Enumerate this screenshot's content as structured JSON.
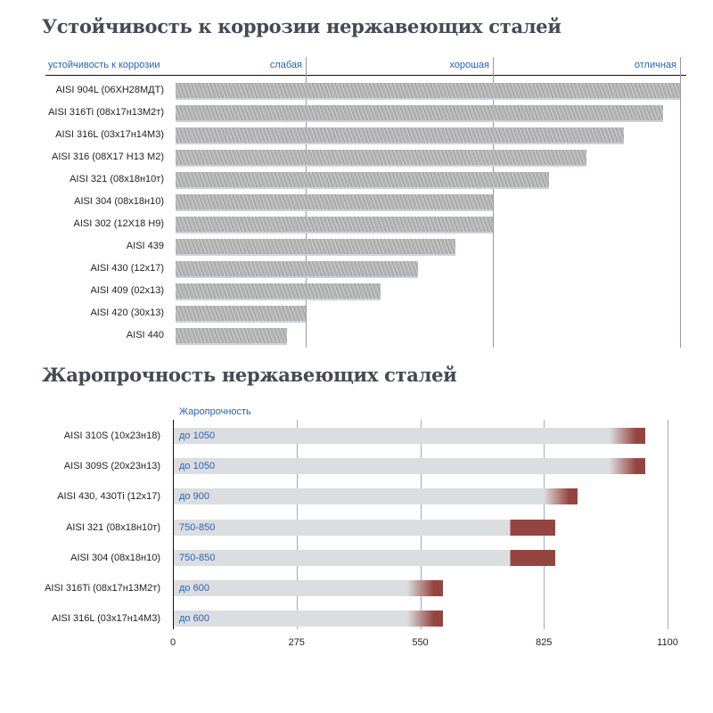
{
  "chart_data": [
    {
      "type": "bar",
      "title": "Устойчивость к коррозии нержавеющих сталей",
      "xlabel": "устойчивость к коррозии",
      "scale_labels": [
        "слабая",
        "хорошая",
        "отличная"
      ],
      "scale_values": [
        25.8,
        62.9,
        100
      ],
      "xlim": [
        0,
        100
      ],
      "categories": [
        "AISI 904L (06ХН28МДТ)",
        "AISI 316Ti (08х17н13М2т)",
        "AISI 316L (03х17н14М3)",
        "AISI 316 (08Х17 Н13 М2)",
        "AISI 321 (08х18н10т)",
        "AISI 304 (08х18н10)",
        "AISI 302 (12Х18 Н9)",
        "AISI 439",
        "AISI 430 (12х17)",
        "AISI 409 (02х13)",
        "AISI 420 (30х13)",
        "AISI 440"
      ],
      "values": [
        100,
        96.6,
        88.9,
        81.4,
        74.0,
        62.9,
        62.9,
        55.5,
        48.1,
        40.6,
        25.8,
        22.1
      ],
      "bar_color": "#b8b8b8"
    },
    {
      "type": "bar",
      "title": "Жаропрочность нержавеющих сталей",
      "xlabel": "Жаропрочность",
      "xlim": [
        0,
        1100
      ],
      "xticks": [
        "0",
        "275",
        "550",
        "825",
        "1100"
      ],
      "xtick_values": [
        0,
        275,
        550,
        825,
        1100
      ],
      "categories": [
        "AISI 310S (10х23н18)",
        "AISI 309S (20х23н13)",
        "AISI 430, 430Ti (12х17)",
        "AISI 321 (08х18н10т)",
        "AISI 304 (08х18н10)",
        "AISI 316Ti (08х17н13М2т)",
        "AISI 316L (03х17н14М3)"
      ],
      "value_labels": [
        "до 1050",
        "до 1050",
        "до 900",
        "750-850",
        "750-850",
        "до 600",
        "до 600"
      ],
      "ranges": [
        [
          970,
          1050
        ],
        [
          970,
          1050
        ],
        [
          825,
          900
        ],
        [
          750,
          850
        ],
        [
          750,
          850
        ],
        [
          520,
          600
        ],
        [
          520,
          600
        ]
      ],
      "gradient": [
        true,
        true,
        true,
        false,
        false,
        true,
        true
      ],
      "base_color": "#dcdde0",
      "accent_color": "#954540"
    }
  ]
}
